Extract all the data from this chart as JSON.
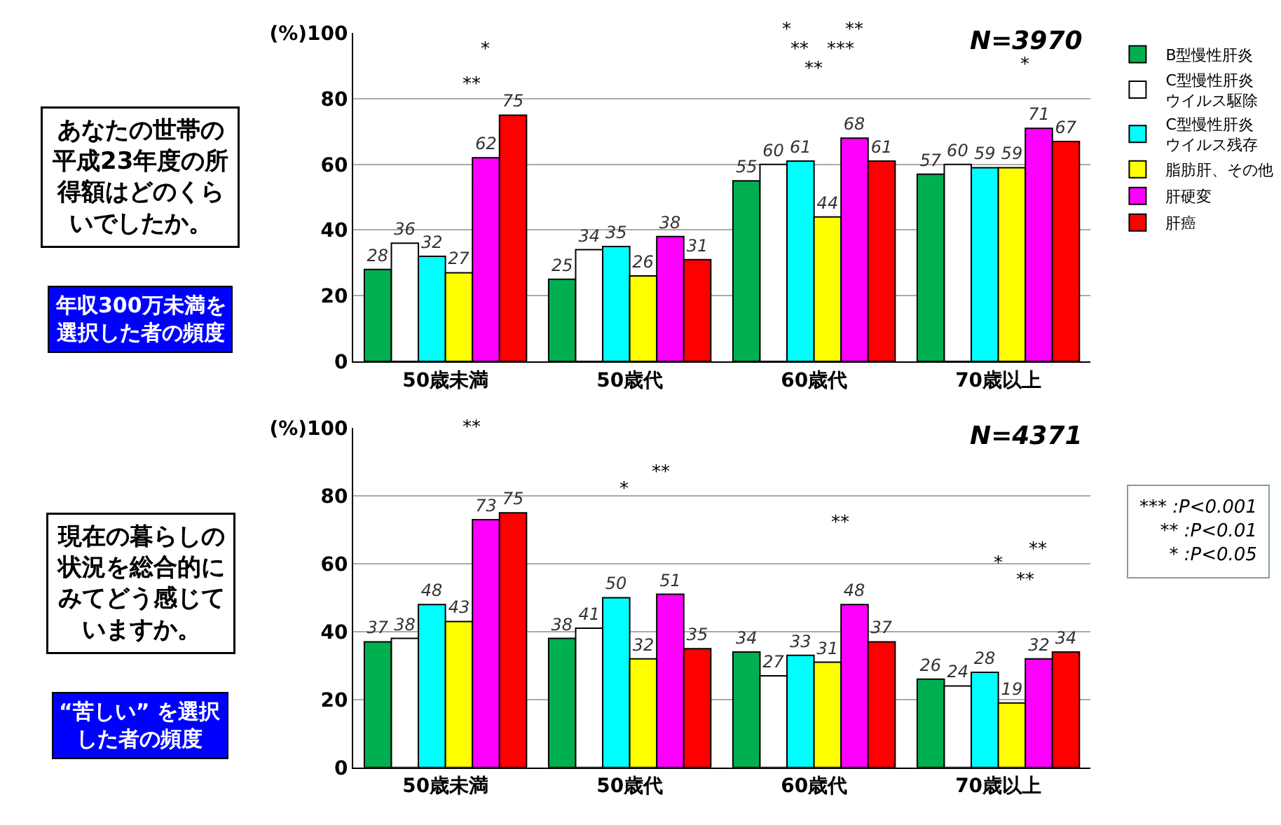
{
  "chart_data": [
    {
      "type": "bar",
      "categories": [
        "50歳未満",
        "50歳代",
        "60歳代",
        "70歳以上"
      ],
      "series": [
        {
          "name": "B型慢性肝炎",
          "color": "#00b050",
          "values": [
            28,
            25,
            55,
            57
          ]
        },
        {
          "name": "C型慢性肝炎ウイルス駆除",
          "color": "#ffffff",
          "values": [
            36,
            34,
            60,
            60
          ]
        },
        {
          "name": "C型慢性肝炎ウイルス残存",
          "color": "#00ffff",
          "values": [
            32,
            35,
            61,
            59
          ]
        },
        {
          "name": "脂肪肝、その他",
          "color": "#ffff00",
          "values": [
            27,
            26,
            44,
            59
          ]
        },
        {
          "name": "肝硬変",
          "color": "#ff00ff",
          "values": [
            62,
            38,
            68,
            71
          ]
        },
        {
          "name": "肝癌",
          "color": "#ff0000",
          "values": [
            75,
            31,
            61,
            67
          ]
        }
      ],
      "ylim": [
        0,
        100
      ],
      "yticks": [
        0,
        20,
        40,
        60,
        {
          "value": 100,
          "label": "(%)100"
        },
        80
      ],
      "grid": "y",
      "legend": "right",
      "data_labels": true,
      "annotations": [
        "あなたの世帯の平成23年度の所得額はどのくらいでしたか。",
        "年収300万未満を選択した者の頻度",
        "N=3970",
        "*",
        "**",
        "*",
        "**",
        "**",
        "**",
        "***",
        "*"
      ]
    },
    {
      "type": "bar",
      "categories": [
        "50歳未満",
        "50歳代",
        "60歳代",
        "70歳以上"
      ],
      "series": [
        {
          "color": "#00b050",
          "values": [
            37,
            38,
            34,
            26
          ]
        },
        {
          "color": "#ffffff",
          "values": [
            38,
            41,
            27,
            24
          ]
        },
        {
          "color": "#00ffff",
          "values": [
            48,
            50,
            33,
            28
          ]
        },
        {
          "color": "#ffff00",
          "values": [
            43,
            32,
            31,
            19
          ]
        },
        {
          "color": "#ff00ff",
          "values": [
            73,
            51,
            48,
            32
          ]
        },
        {
          "color": "#ff0000",
          "values": [
            75,
            35,
            37,
            34
          ]
        }
      ],
      "ylim": [
        0,
        100
      ],
      "yticks": [
        0,
        20,
        40,
        60,
        80,
        {
          "value": 100,
          "label": "(%)100"
        }
      ],
      "grid": "y",
      "data_labels": true,
      "annotations": [
        "現在の暮らしの状況を総合的にみてどう感じていますか。",
        "“苦しい” を選択した者の頻度",
        "N=4371",
        "**",
        "*",
        "**",
        "**",
        "*",
        "**",
        "**",
        "*** :P<0.001\n** :P<0.01\n* :P<0.05"
      ]
    }
  ]
}
